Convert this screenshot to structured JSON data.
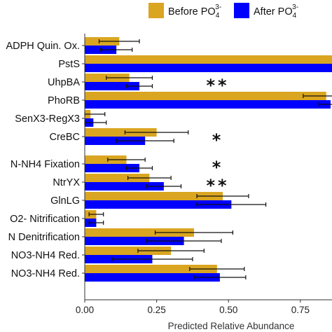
{
  "chart_data": {
    "type": "bar",
    "orientation": "horizontal",
    "categories": [
      "ADPH Quin. Ox.",
      "PstS",
      "UhpBA",
      "PhoRB",
      "SenX3-RegX3",
      "CreBC",
      "N-NH4 Fixation",
      "NtrYX",
      "GlnLG",
      "O2- Nitrification",
      "N Denitrification",
      "NO3-NH4 Red.",
      "NO3-NH4 Red."
    ],
    "series": [
      {
        "name": "Before PO",
        "color": "#DAA520",
        "values": [
          0.12,
          0.9,
          0.155,
          0.84,
          0.02,
          0.25,
          0.145,
          0.225,
          0.48,
          0.04,
          0.38,
          0.3,
          0.46
        ],
        "errors": [
          0.07,
          0.0,
          0.08,
          0.08,
          0.05,
          0.11,
          0.065,
          0.075,
          0.09,
          0.025,
          0.135,
          0.115,
          0.095
        ]
      },
      {
        "name": "After PO",
        "color": "#0000FF",
        "values": [
          0.11,
          0.9,
          0.19,
          0.855,
          0.03,
          0.21,
          0.19,
          0.275,
          0.51,
          0.04,
          0.345,
          0.235,
          0.47
        ],
        "errors": [
          0.055,
          0.0,
          0.045,
          0.04,
          0.045,
          0.1,
          0.045,
          0.06,
          0.12,
          0.025,
          0.13,
          0.14,
          0.09
        ]
      }
    ],
    "significance": [
      "",
      "",
      "**",
      "",
      "",
      "*",
      "*",
      "**",
      "",
      "",
      "",
      "",
      ""
    ],
    "group_gap_after_index": 5,
    "xlabel": "Predicted Relative Abundance",
    "ylabel": "",
    "xlim": [
      0,
      0.86
    ],
    "xticks": [
      "0.00",
      "0.25",
      "0.50",
      "0.75"
    ],
    "xtick_values": [
      0,
      0.25,
      0.5,
      0.75
    ],
    "legend": {
      "placement": "top-right",
      "entries": [
        {
          "label": "Before PO",
          "superscript": "3-",
          "subscript": "4"
        },
        {
          "label": "After PO",
          "superscript": "3-",
          "subscript": "4"
        }
      ]
    },
    "grid": false
  }
}
